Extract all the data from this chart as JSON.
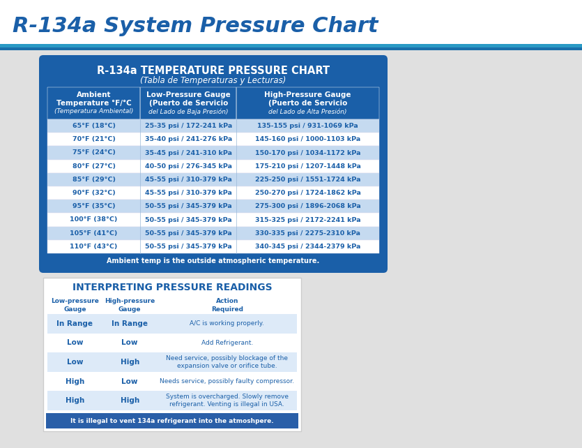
{
  "main_title": "R-134a System Pressure Chart",
  "page_bg": "#ebebeb",
  "content_bg": "#e0e0e0",
  "white": "#ffffff",
  "top_bar1": "#2a9ac5",
  "top_bar2": "#1a6faa",
  "card1_bg": "#1a5fa8",
  "card1_title": "R-134a TEMPERATURE PRESSURE CHART",
  "card1_subtitle": "(Tabla de Temperaturas y Lecturas)",
  "col_headers": [
    "Ambient\nTemperature °F/°C\n(Temperatura Ambiental)",
    "Low-Pressure Gauge\n(Puerto de Servicio\ndel Lado de Baja Presión)",
    "High-Pressure Gauge\n(Puerto de Servicio\ndel Lado de Alta Presión)"
  ],
  "table_rows": [
    [
      "65°F (18°C)",
      "25-35 psi / 172-241 kPa",
      "135-155 psi / 931-1069 kPa"
    ],
    [
      "70°F (21°C)",
      "35-40 psi / 241-276 kPa",
      "145-160 psi / 1000-1103 kPa"
    ],
    [
      "75°F (24°C)",
      "35-45 psi / 241-310 kPa",
      "150-170 psi / 1034-1172 kPa"
    ],
    [
      "80°F (27°C)",
      "40-50 psi / 276-345 kPa",
      "175-210 psi / 1207-1448 kPa"
    ],
    [
      "85°F (29°C)",
      "45-55 psi / 310-379 kPa",
      "225-250 psi / 1551-1724 kPa"
    ],
    [
      "90°F (32°C)",
      "45-55 psi / 310-379 kPa",
      "250-270 psi / 1724-1862 kPa"
    ],
    [
      "95°F (35°C)",
      "50-55 psi / 345-379 kPa",
      "275-300 psi / 1896-2068 kPa"
    ],
    [
      "100°F (38°C)",
      "50-55 psi / 345-379 kPa",
      "315-325 psi / 2172-2241 kPa"
    ],
    [
      "105°F (41°C)",
      "50-55 psi / 345-379 kPa",
      "330-335 psi / 2275-2310 kPa"
    ],
    [
      "110°F (43°C)",
      "50-55 psi / 345-379 kPa",
      "340-345 psi / 2344-2379 kPa"
    ]
  ],
  "shaded_rows": [
    0,
    2,
    4,
    6,
    8
  ],
  "row_shade_color": "#c5daf0",
  "row_white_color": "#ffffff",
  "footer1": "Ambient temp is the outside atmospheric temperature.",
  "card2_title": "INTERPRETING PRESSURE READINGS",
  "card2_col_headers": [
    "Low-pressure\nGauge",
    "High-pressure\nGauge",
    "Action\nRequired"
  ],
  "card2_rows": [
    [
      "In Range",
      "In Range",
      "A/C is working properly."
    ],
    [
      "Low",
      "Low",
      "Add Refrigerant."
    ],
    [
      "Low",
      "High",
      "Need service, possibly blockage of the\nexpansion valve or orifice tube."
    ],
    [
      "High",
      "Low",
      "Needs service, possibly faulty compressor."
    ],
    [
      "High",
      "High",
      "System is overcharged. Slowly remove\nrefrigerant. Venting is illegal in USA."
    ]
  ],
  "card2_shaded_rows": [
    0,
    2,
    4
  ],
  "card2_footer": "It is illegal to vent 134a refrigerant into the atmoshpere.",
  "card2_footer_bg": "#2a5fa8",
  "text_blue": "#1a5fa8",
  "cell_text_color": "#1a5fa8"
}
